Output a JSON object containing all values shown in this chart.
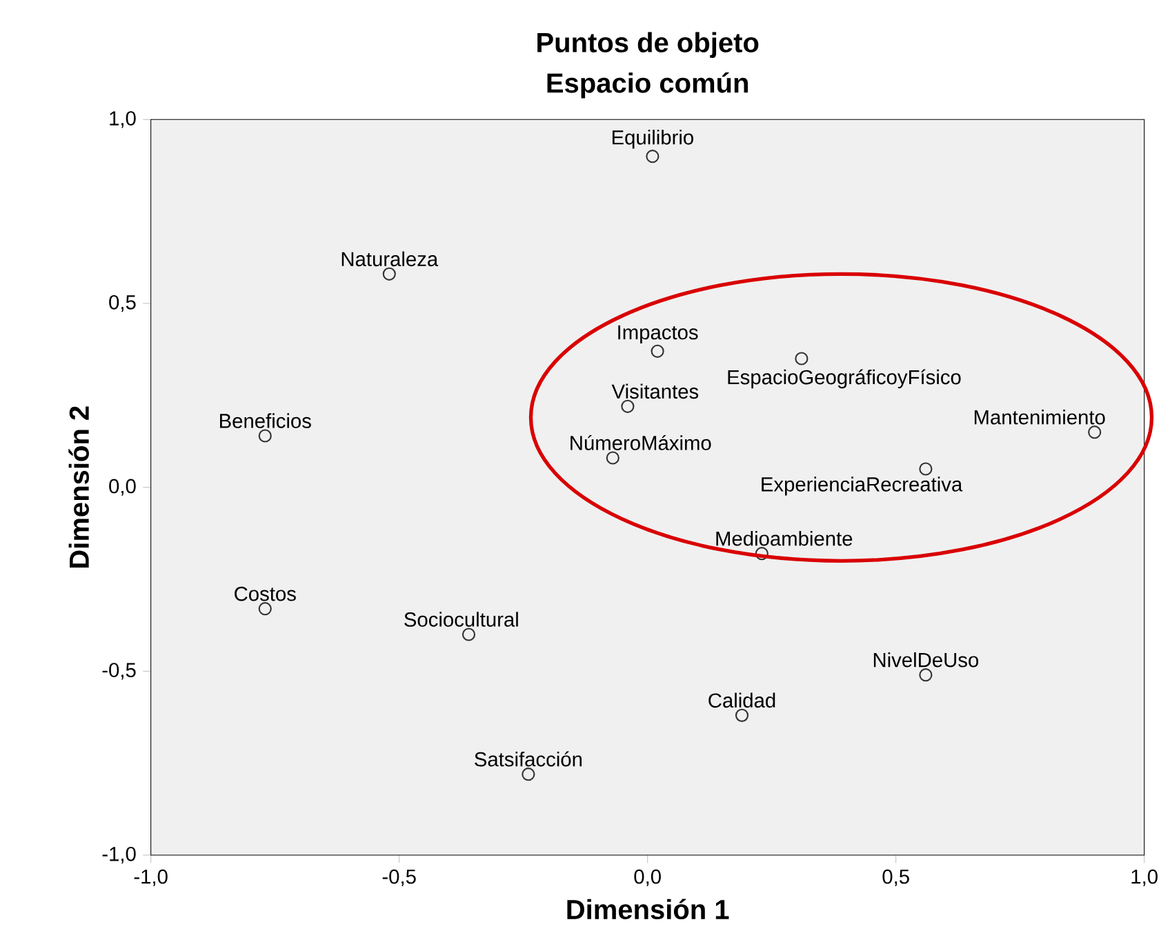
{
  "chart_data": {
    "type": "scatter",
    "title": "Puntos de objeto",
    "subtitle": "Espacio común",
    "xlabel": "Dimensión 1",
    "ylabel": "Dimensión 2",
    "xlim": [
      -1,
      1
    ],
    "ylim": [
      -1,
      1
    ],
    "xticks": [
      {
        "value": -1,
        "label": "-1,0"
      },
      {
        "value": -0.5,
        "label": "-0,5"
      },
      {
        "value": 0,
        "label": "0,0"
      },
      {
        "value": 0.5,
        "label": "0,5"
      },
      {
        "value": 1,
        "label": "1,0"
      }
    ],
    "yticks": [
      {
        "value": -1,
        "label": "-1,0"
      },
      {
        "value": -0.5,
        "label": "-0,5"
      },
      {
        "value": 0,
        "label": "0,0"
      },
      {
        "value": 0.5,
        "label": "0,5"
      },
      {
        "value": 1,
        "label": "1,0"
      }
    ],
    "marker": "circle",
    "grid": false,
    "series": [
      {
        "color": "#333333",
        "x": [
          0.01,
          -0.52,
          0.02,
          0.31,
          -0.04,
          -0.77,
          0.9,
          -0.07,
          0.56,
          0.23,
          -0.77,
          -0.36,
          0.56,
          0.19,
          -0.24
        ],
        "values": [
          0.9,
          0.58,
          0.37,
          0.35,
          0.22,
          0.14,
          0.15,
          0.08,
          0.05,
          -0.18,
          -0.33,
          -0.4,
          -0.51,
          -0.62,
          -0.78
        ]
      }
    ],
    "annotations": [
      {
        "text": "Equilibrio",
        "x": 0.01,
        "y": 0.9
      },
      {
        "text": "Naturaleza",
        "x": -0.52,
        "y": 0.58
      },
      {
        "text": "Impactos",
        "x": 0.02,
        "y": 0.37
      },
      {
        "text": "EspacioGeográficoyFísico",
        "x": 0.31,
        "y": 0.35
      },
      {
        "text": "Visitantes",
        "x": -0.04,
        "y": 0.22
      },
      {
        "text": "Beneficios",
        "x": -0.77,
        "y": 0.14
      },
      {
        "text": "Mantenimiento",
        "x": 0.9,
        "y": 0.15
      },
      {
        "text": "NúmeroMáximo",
        "x": -0.07,
        "y": 0.08
      },
      {
        "text": "ExperienciaRecreativa",
        "x": 0.56,
        "y": 0.05
      },
      {
        "text": "Medioambiente",
        "x": 0.23,
        "y": -0.18
      },
      {
        "text": "Costos",
        "x": -0.77,
        "y": -0.33
      },
      {
        "text": "Sociocultural",
        "x": -0.36,
        "y": -0.4
      },
      {
        "text": "NivelDeUso",
        "x": 0.56,
        "y": -0.51
      },
      {
        "text": "Calidad",
        "x": 0.19,
        "y": -0.62
      },
      {
        "text": "Satsifacción",
        "x": -0.24,
        "y": -0.78
      }
    ]
  }
}
